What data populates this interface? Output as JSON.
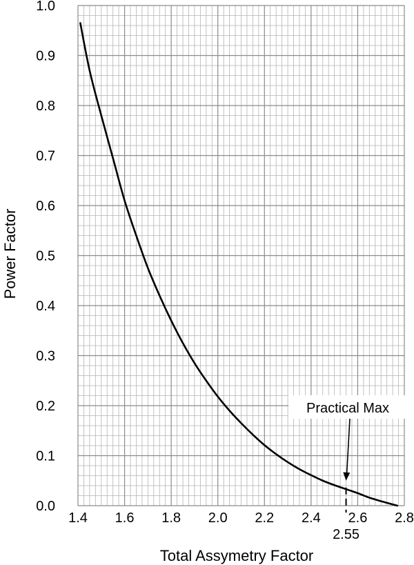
{
  "chart_data": {
    "type": "line",
    "title": "",
    "xlabel": "Total Assymetry Factor",
    "ylabel": "Power Factor",
    "xlim": [
      1.4,
      2.8
    ],
    "ylim": [
      0.0,
      1.0
    ],
    "x_ticks": [
      "1.4",
      "1.6",
      "1.8",
      "2.0",
      "2.2",
      "2.4",
      "2.6",
      "2.8"
    ],
    "y_ticks": [
      "0.0",
      "0.1",
      "0.2",
      "0.3",
      "0.4",
      "0.5",
      "0.6",
      "0.7",
      "0.8",
      "0.9",
      "1.0"
    ],
    "grid": true,
    "series": [
      {
        "x": [
          1.41,
          1.45,
          1.5,
          1.55,
          1.6,
          1.65,
          1.7,
          1.75,
          1.8,
          1.85,
          1.9,
          1.95,
          2.0,
          2.05,
          2.1,
          2.15,
          2.2,
          2.25,
          2.3,
          2.35,
          2.4,
          2.45,
          2.5,
          2.55,
          2.6,
          2.65,
          2.7,
          2.77
        ],
        "y": [
          0.965,
          0.87,
          0.78,
          0.695,
          0.61,
          0.54,
          0.475,
          0.42,
          0.37,
          0.325,
          0.285,
          0.25,
          0.218,
          0.19,
          0.165,
          0.142,
          0.121,
          0.103,
          0.087,
          0.073,
          0.061,
          0.05,
          0.041,
          0.033,
          0.025,
          0.016,
          0.009,
          0.0
        ]
      }
    ],
    "annotations": [
      {
        "text": "Practical Max",
        "x": 2.55,
        "y": 0.05
      },
      {
        "text": "2.55",
        "x": 2.55
      }
    ]
  }
}
